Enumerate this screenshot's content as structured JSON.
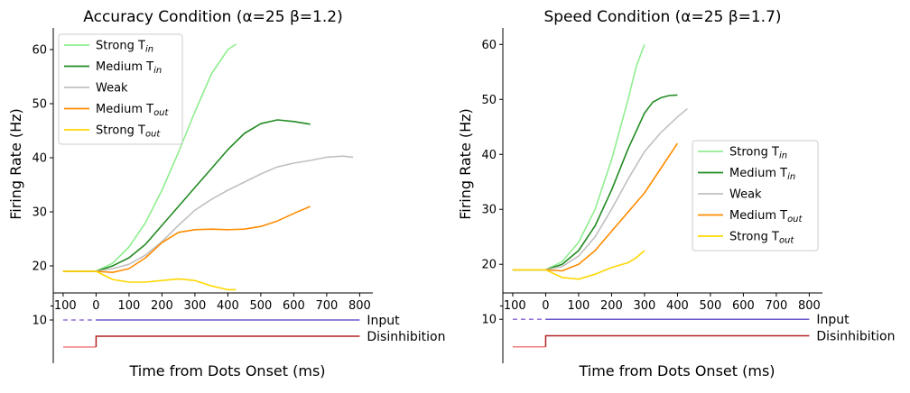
{
  "chart_data": [
    {
      "type": "line",
      "title": "Accuracy Condition (α=25 β=1.2)",
      "xlabel": "Time from Dots Onset (ms)",
      "ylabel": "Firing Rate (Hz)",
      "xlim": [
        -130,
        840
      ],
      "ylim": [
        2,
        64
      ],
      "xticks": [
        -100,
        0,
        100,
        200,
        300,
        400,
        500,
        600,
        700,
        800
      ],
      "yticks": [
        10,
        20,
        30,
        40,
        50,
        60
      ],
      "grid": false,
      "legend_position": "top-left",
      "series": [
        {
          "name": "Strong T",
          "sub": "in",
          "color": "#90ee90",
          "x": [
            -100,
            0,
            50,
            100,
            150,
            200,
            250,
            300,
            350,
            400,
            425
          ],
          "y": [
            19,
            19,
            20.5,
            23.5,
            28,
            34,
            41,
            48.5,
            55.5,
            60,
            61
          ]
        },
        {
          "name": "Medium T",
          "sub": "in",
          "color": "#228b22",
          "x": [
            -100,
            0,
            50,
            100,
            150,
            200,
            250,
            300,
            350,
            400,
            450,
            500,
            550,
            600,
            650
          ],
          "y": [
            19,
            19,
            20,
            21.5,
            24,
            27.5,
            31,
            34.5,
            38,
            41.5,
            44.5,
            46.3,
            47,
            46.7,
            46.2
          ]
        },
        {
          "name": "Weak",
          "sub": "",
          "color": "#c0c0c0",
          "x": [
            -100,
            0,
            50,
            100,
            150,
            200,
            250,
            300,
            350,
            400,
            450,
            500,
            550,
            600,
            650,
            700,
            750,
            780
          ],
          "y": [
            19,
            19,
            19.5,
            20.3,
            22,
            24.5,
            27.5,
            30.3,
            32.3,
            34,
            35.5,
            37,
            38.3,
            39,
            39.5,
            40.1,
            40.3,
            40.1
          ]
        },
        {
          "name": "Medium T",
          "sub": "out",
          "color": "#ff8c00",
          "x": [
            -100,
            0,
            50,
            100,
            150,
            200,
            250,
            300,
            350,
            400,
            450,
            500,
            550,
            600,
            650
          ],
          "y": [
            19,
            19,
            18.8,
            19.5,
            21.5,
            24.3,
            26.2,
            26.7,
            26.8,
            26.7,
            26.8,
            27.3,
            28.3,
            29.7,
            31
          ]
        },
        {
          "name": "Strong T",
          "sub": "out",
          "color": "#ffd700",
          "x": [
            -100,
            0,
            50,
            100,
            150,
            200,
            250,
            300,
            350,
            400,
            425
          ],
          "y": [
            19,
            19,
            17.5,
            17,
            17,
            17.3,
            17.6,
            17.3,
            16.3,
            15.6,
            15.6
          ]
        }
      ],
      "input_trace": {
        "label": "Input",
        "value": 10,
        "dashed_x": [
          -100,
          0
        ],
        "solid_x": [
          0,
          800
        ],
        "color": "#6a5acd",
        "dash_color": "#9370db"
      },
      "disinhibition_trace": {
        "label": "Disinhibition",
        "low": 5,
        "high": 7,
        "step_x": 0,
        "x": [
          -100,
          800
        ],
        "color": "#b22222",
        "low_color": "#f08080"
      }
    },
    {
      "type": "line",
      "title": "Speed Condition (α=25 β=1.7)",
      "xlabel": "Time from Dots Onset (ms)",
      "ylabel": "Firing Rate (Hz)",
      "xlim": [
        -130,
        840
      ],
      "ylim": [
        2,
        63
      ],
      "xticks": [
        -100,
        0,
        100,
        200,
        300,
        400,
        500,
        600,
        700,
        800
      ],
      "yticks": [
        10,
        20,
        30,
        40,
        50,
        60
      ],
      "grid": false,
      "legend_position": "center-right",
      "series": [
        {
          "name": "Strong T",
          "sub": "in",
          "color": "#90ee90",
          "x": [
            -100,
            0,
            50,
            100,
            150,
            200,
            250,
            275,
            300
          ],
          "y": [
            19,
            19,
            20.5,
            24,
            30,
            39,
            50,
            56,
            60
          ]
        },
        {
          "name": "Medium T",
          "sub": "in",
          "color": "#228b22",
          "x": [
            -100,
            0,
            50,
            100,
            150,
            200,
            250,
            300,
            325,
            350,
            375,
            400
          ],
          "y": [
            19,
            19,
            20,
            22.5,
            27,
            33.5,
            41,
            47.5,
            49.5,
            50.3,
            50.7,
            50.8
          ]
        },
        {
          "name": "Weak",
          "sub": "",
          "color": "#c0c0c0",
          "x": [
            -100,
            0,
            50,
            100,
            150,
            200,
            250,
            300,
            350,
            400,
            430
          ],
          "y": [
            19,
            19,
            19.6,
            21.5,
            25,
            30,
            35.5,
            40.5,
            44,
            46.8,
            48.3
          ]
        },
        {
          "name": "Medium T",
          "sub": "out",
          "color": "#ff8c00",
          "x": [
            -100,
            0,
            50,
            100,
            150,
            200,
            250,
            300,
            350,
            400
          ],
          "y": [
            19,
            19,
            18.8,
            20,
            22.5,
            26,
            29.5,
            33,
            37.5,
            42
          ]
        },
        {
          "name": "Strong T",
          "sub": "out",
          "color": "#ffd700",
          "x": [
            -100,
            0,
            50,
            100,
            150,
            200,
            250,
            275,
            300
          ],
          "y": [
            19,
            19,
            17.6,
            17.3,
            18.2,
            19.4,
            20.3,
            21.2,
            22.5
          ]
        }
      ],
      "input_trace": {
        "label": "Input",
        "value": 10,
        "dashed_x": [
          -100,
          0
        ],
        "solid_x": [
          0,
          800
        ],
        "color": "#6a5acd",
        "dash_color": "#9370db"
      },
      "disinhibition_trace": {
        "label": "Disinhibition",
        "low": 5,
        "high": 7,
        "step_x": 0,
        "x": [
          -100,
          800
        ],
        "color": "#b22222",
        "low_color": "#f08080"
      }
    }
  ]
}
